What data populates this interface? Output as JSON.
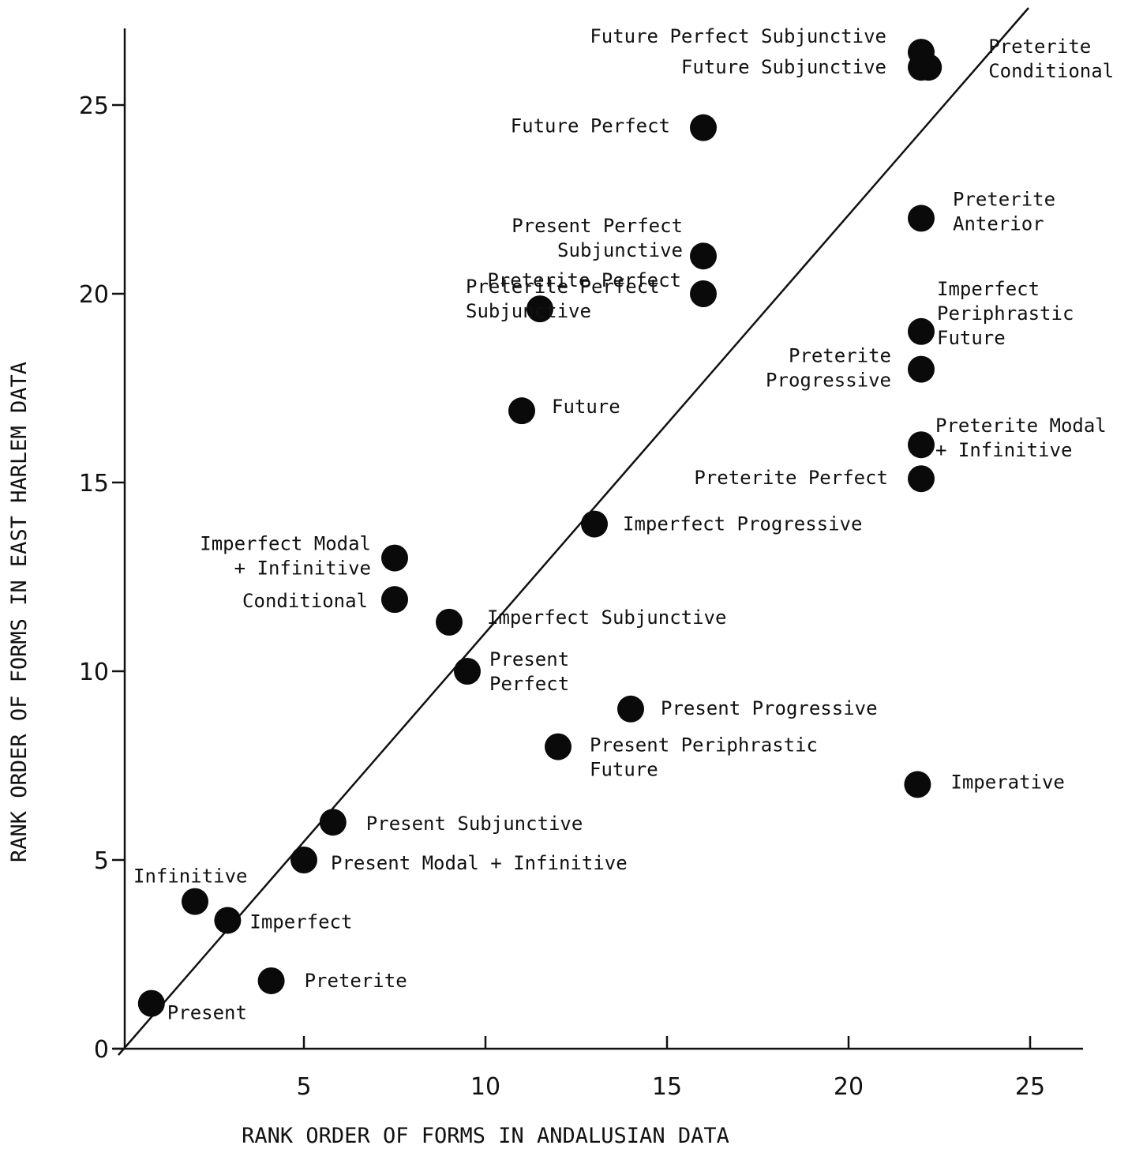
{
  "chart_data": {
    "type": "scatter",
    "title": "",
    "xlabel": "RANK ORDER OF FORMS IN ANDALUSIAN DATA",
    "ylabel": "RANK ORDER OF FORMS IN EAST HARLEM DATA",
    "xlim": [
      0,
      27
    ],
    "ylim": [
      0,
      27
    ],
    "x_ticks": [
      5,
      10,
      15,
      20,
      25
    ],
    "y_ticks": [
      0,
      5,
      10,
      15,
      20,
      25
    ],
    "grid": false,
    "reference_line": "y = x",
    "series": [
      {
        "points": [
          {
            "label": [
              "Present"
            ],
            "x": 0.8,
            "y": 1.2
          },
          {
            "label": [
              "Infinitive"
            ],
            "x": 2.0,
            "y": 3.9
          },
          {
            "label": [
              "Imperfect"
            ],
            "x": 2.9,
            "y": 3.4
          },
          {
            "label": [
              "Preterite"
            ],
            "x": 4.1,
            "y": 1.8
          },
          {
            "label": [
              "Present Modal + Infinitive"
            ],
            "x": 5.0,
            "y": 5.0
          },
          {
            "label": [
              "Present Subjunctive"
            ],
            "x": 5.8,
            "y": 6.0
          },
          {
            "label": [
              "Imperfect Modal",
              "+ Infinitive"
            ],
            "x": 7.5,
            "y": 13.0
          },
          {
            "label": [
              "Conditional"
            ],
            "x": 7.5,
            "y": 11.9
          },
          {
            "label": [
              "Imperfect Subjunctive"
            ],
            "x": 9.0,
            "y": 11.3
          },
          {
            "label": [
              "Present",
              "Perfect"
            ],
            "x": 9.5,
            "y": 10.0
          },
          {
            "label": [
              "Future"
            ],
            "x": 11.0,
            "y": 16.9
          },
          {
            "label": [
              "Preterite Perfect",
              "Subjunctive"
            ],
            "x": 11.5,
            "y": 19.6
          },
          {
            "label": [
              "Present Periphrastic",
              "Future"
            ],
            "x": 12.0,
            "y": 8.0
          },
          {
            "label": [
              "Imperfect Progressive"
            ],
            "x": 13.0,
            "y": 13.9
          },
          {
            "label": [
              "Present Progressive"
            ],
            "x": 14.0,
            "y": 9.0
          },
          {
            "label": [
              "Future Perfect"
            ],
            "x": 16.0,
            "y": 24.4
          },
          {
            "label": [
              "Present Perfect",
              "Subjunctive"
            ],
            "x": 16.0,
            "y": 21.0
          },
          {
            "label": [
              "Preterite Perfect"
            ],
            "x": 16.0,
            "y": 20.0
          },
          {
            "label": [
              "Future Perfect Subjunctive"
            ],
            "x": 22.0,
            "y": 26.4
          },
          {
            "label": [
              "Future Subjunctive"
            ],
            "x": 22.0,
            "y": 26.0
          },
          {
            "label": [
              "Preterite",
              "Conditional"
            ],
            "x": 22.2,
            "y": 26.0
          },
          {
            "label": [
              "Preterite",
              "Anterior"
            ],
            "x": 22.0,
            "y": 22.0
          },
          {
            "label": [
              "Imperfect",
              "Periphrastic",
              "Future"
            ],
            "x": 22.0,
            "y": 19.0
          },
          {
            "label": [
              "Preterite",
              "Progressive"
            ],
            "x": 22.0,
            "y": 18.0
          },
          {
            "label": [
              "Preterite Modal",
              "+ Infinitive"
            ],
            "x": 22.0,
            "y": 16.0
          },
          {
            "label": [
              "Preterite Perfect"
            ],
            "x": 22.0,
            "y": 15.1
          },
          {
            "label": [
              "Imperative"
            ],
            "x": 21.9,
            "y": 7.0
          }
        ]
      }
    ]
  }
}
